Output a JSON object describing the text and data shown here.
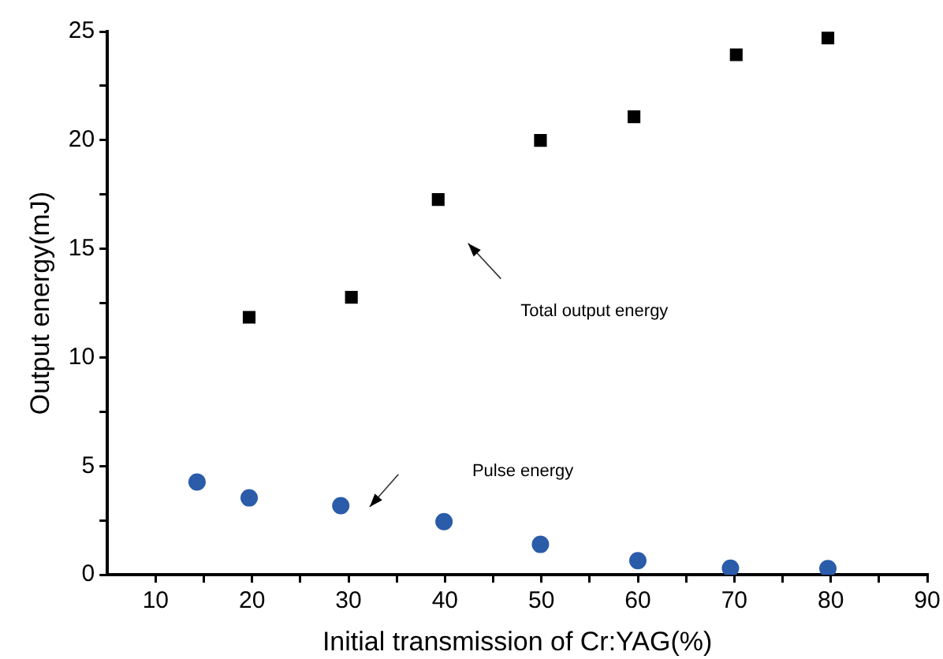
{
  "chart_data": {
    "type": "scatter",
    "xlabel": "Initial transmission of Cr:YAG(%)",
    "ylabel": "Output energy(mJ)",
    "xlim": [
      5,
      90
    ],
    "xticks": [
      10,
      {
        "value": 15,
        "label": null
      },
      20,
      {
        "value": 25,
        "label": null
      },
      30,
      {
        "value": 35,
        "label": null
      },
      40,
      {
        "value": 45,
        "label": null
      },
      50,
      {
        "value": 55,
        "label": null
      },
      60,
      {
        "value": 65,
        "label": null
      },
      70,
      {
        "value": 75,
        "label": null
      },
      80,
      {
        "value": 85,
        "label": null
      },
      90
    ],
    "ylim": [
      0,
      25
    ],
    "yticks": [
      0,
      {
        "value": 2.5,
        "label": null
      },
      5,
      {
        "value": 7.5,
        "label": null
      },
      10,
      {
        "value": 12.5,
        "label": null
      },
      15,
      {
        "value": 17.5,
        "label": null
      },
      20,
      {
        "value": 22.5,
        "label": null
      },
      25
    ],
    "grid": false,
    "legend": false,
    "series": [
      {
        "color": "#000000",
        "marker": "square",
        "x": [
          19.7,
          30.3,
          39.3,
          49.9,
          59.6,
          70.2,
          79.7
        ],
        "values": [
          11.85,
          12.77,
          17.27,
          19.99,
          21.08,
          23.93,
          24.7
        ]
      },
      {
        "color": "#2a5caa",
        "marker": "circle",
        "x": [
          14.3,
          19.7,
          29.2,
          39.9,
          49.9,
          60,
          69.6,
          79.7
        ],
        "values": [
          4.27,
          3.54,
          3.18,
          2.45,
          1.4,
          0.65,
          0.31,
          0.29
        ]
      }
    ],
    "annotations": [
      "Total output energy",
      "Pulse energy"
    ]
  }
}
